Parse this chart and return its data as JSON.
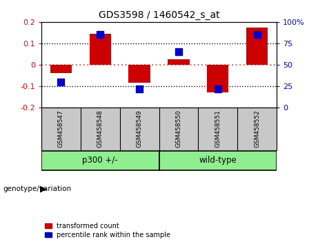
{
  "title": "GDS3598 / 1460542_s_at",
  "samples": [
    "GSM458547",
    "GSM458548",
    "GSM458549",
    "GSM458550",
    "GSM458551",
    "GSM458552"
  ],
  "transformed_counts": [
    -0.04,
    0.145,
    -0.085,
    0.025,
    -0.13,
    0.175
  ],
  "percentile_ranks": [
    30,
    85,
    22,
    65,
    22,
    85
  ],
  "ylim_left": [
    -0.2,
    0.2
  ],
  "ylim_right": [
    0,
    100
  ],
  "yticks_left": [
    -0.2,
    -0.1,
    0.0,
    0.1,
    0.2
  ],
  "yticks_right": [
    0,
    25,
    50,
    75,
    100
  ],
  "group_labels": [
    "p300 +/-",
    "wild-type"
  ],
  "group_sample_counts": [
    3,
    3
  ],
  "group_color": "#90EE90",
  "group_label_text": "genotype/variation",
  "bar_color": "#CC0000",
  "dot_color": "#0000CC",
  "zero_line_color": "#FF6666",
  "dotted_line_color": "#000000",
  "bg_color": "#FFFFFF",
  "plot_bg_color": "#FFFFFF",
  "sample_box_color": "#C8C8C8",
  "legend_items": [
    "transformed count",
    "percentile rank within the sample"
  ],
  "bar_width": 0.55,
  "dot_size": 45
}
